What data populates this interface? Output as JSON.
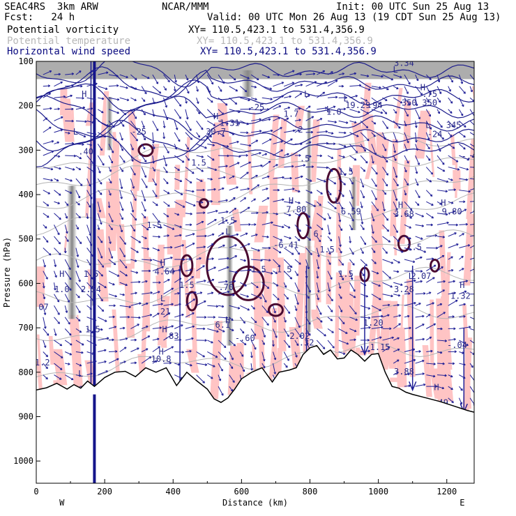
{
  "header": {
    "model": "SEAC4RS  3km ARW",
    "org": "NCAR/MMM",
    "init": "Init: 00 UTC Sun 25 Aug 13",
    "fcst": "Fcst:   24 h",
    "valid": "Valid: 00 UTC Mon 26 Aug 13 (19 CDT Sun 25 Aug 13)"
  },
  "fields": [
    {
      "name": "Potential vorticity",
      "xy": "XY= 110.5,423.1 to 531.4,356.9",
      "color": "#000000"
    },
    {
      "name": "Potential temperature",
      "xy": "XY= 110.5,423.1 to 531.4,356.9",
      "color": "#b8b8b8"
    },
    {
      "name": "Horizontal wind speed",
      "xy": "XY= 110.5,423.1 to 531.4,356.9",
      "color": "#0a0a80"
    }
  ],
  "chart_data": {
    "type": "cross-section",
    "xlabel": "Distance (km)",
    "ylabel": "Pressure (hPa)",
    "xlim": [
      0,
      1280
    ],
    "ylim": [
      1050,
      100
    ],
    "x_ticks": [
      0,
      200,
      400,
      600,
      800,
      1000,
      1200
    ],
    "y_ticks": [
      100,
      200,
      300,
      400,
      500,
      600,
      700,
      800,
      900,
      1000
    ],
    "x_end_labels": {
      "left": "W",
      "right": "E"
    },
    "terrain_surface": [
      [
        0,
        840
      ],
      [
        30,
        835
      ],
      [
        60,
        825
      ],
      [
        90,
        838
      ],
      [
        110,
        828
      ],
      [
        130,
        836
      ],
      [
        150,
        820
      ],
      [
        170,
        832
      ],
      [
        200,
        812
      ],
      [
        230,
        800
      ],
      [
        260,
        798
      ],
      [
        290,
        810
      ],
      [
        320,
        790
      ],
      [
        350,
        800
      ],
      [
        380,
        790
      ],
      [
        410,
        830
      ],
      [
        440,
        800
      ],
      [
        470,
        820
      ],
      [
        500,
        838
      ],
      [
        520,
        860
      ],
      [
        540,
        868
      ],
      [
        560,
        858
      ],
      [
        580,
        838
      ],
      [
        600,
        815
      ],
      [
        630,
        800
      ],
      [
        660,
        790
      ],
      [
        690,
        822
      ],
      [
        710,
        800
      ],
      [
        740,
        795
      ],
      [
        760,
        790
      ],
      [
        780,
        760
      ],
      [
        800,
        745
      ],
      [
        820,
        740
      ],
      [
        840,
        760
      ],
      [
        860,
        750
      ],
      [
        880,
        770
      ],
      [
        900,
        768
      ],
      [
        920,
        750
      ],
      [
        940,
        760
      ],
      [
        960,
        775
      ],
      [
        980,
        760
      ],
      [
        1000,
        758
      ],
      [
        1020,
        800
      ],
      [
        1040,
        832
      ],
      [
        1060,
        836
      ],
      [
        1080,
        845
      ],
      [
        1100,
        850
      ],
      [
        1140,
        858
      ],
      [
        1180,
        866
      ],
      [
        1220,
        876
      ],
      [
        1260,
        886
      ],
      [
        1280,
        890
      ]
    ],
    "annotations": [
      {
        "text": "H",
        "x": 140,
        "y": 180
      },
      {
        "text": "L",
        "x": 115,
        "y": 265
      },
      {
        "text": ".40",
        "x": 145,
        "y": 310
      },
      {
        "text": "H",
        "x": 75,
        "y": 585
      },
      {
        "text": "1.0",
        "x": 75,
        "y": 620
      },
      {
        "text": "2.54",
        "x": 160,
        "y": 620
      },
      {
        "text": "1.5",
        "x": 160,
        "y": 585
      },
      {
        "text": "1.5",
        "x": 165,
        "y": 710
      },
      {
        "text": "1.2",
        "x": 18,
        "y": 785
      },
      {
        "text": "L",
        "x": 130,
        "y": 810
      },
      {
        "text": "18.32",
        "x": 160,
        "y": 845
      },
      {
        "text": ".07",
        "x": 14,
        "y": 660
      },
      {
        "text": "-25",
        "x": 300,
        "y": 265
      },
      {
        "text": "1.5",
        "x": 345,
        "y": 475
      },
      {
        "text": "H",
        "x": 370,
        "y": 560
      },
      {
        "text": "4.64",
        "x": 375,
        "y": 580
      },
      {
        "text": "1.5",
        "x": 440,
        "y": 610
      },
      {
        "text": "L",
        "x": 370,
        "y": 640
      },
      {
        "text": ".21",
        "x": 370,
        "y": 670
      },
      {
        "text": "H",
        "x": 375,
        "y": 710
      },
      {
        "text": ".83",
        "x": 395,
        "y": 725
      },
      {
        "text": "H",
        "x": 365,
        "y": 760
      },
      {
        "text": "10.8",
        "x": 365,
        "y": 777
      },
      {
        "text": "H",
        "x": 525,
        "y": 230
      },
      {
        "text": "30.7",
        "x": 525,
        "y": 265
      },
      {
        "text": "1.31",
        "x": 565,
        "y": 245
      },
      {
        "text": "1.5",
        "x": 475,
        "y": 335
      },
      {
        "text": "1.5",
        "x": 560,
        "y": 465
      },
      {
        "text": "L",
        "x": 560,
        "y": 490
      },
      {
        "text": ".70",
        "x": 555,
        "y": 615
      },
      {
        "text": "1.5",
        "x": 650,
        "y": 575
      },
      {
        "text": "H",
        "x": 560,
        "y": 690
      },
      {
        "text": "6.1",
        "x": 545,
        "y": 700
      },
      {
        "text": "-.60",
        "x": 610,
        "y": 730
      },
      {
        "text": "311.1",
        "x": 710,
        "y": 830
      },
      {
        "text": "3",
        "x": 735,
        "y": 825
      },
      {
        "text": "-25",
        "x": 645,
        "y": 210
      },
      {
        "text": "1.7",
        "x": 745,
        "y": 225
      },
      {
        "text": "L",
        "x": 790,
        "y": 180
      },
      {
        "text": "-2",
        "x": 765,
        "y": 260
      },
      {
        "text": ".5",
        "x": 785,
        "y": 325
      },
      {
        "text": "H",
        "x": 745,
        "y": 420
      },
      {
        "text": "7.80",
        "x": 760,
        "y": 440
      },
      {
        "text": "6.",
        "x": 825,
        "y": 495
      },
      {
        "text": "-6.41",
        "x": 730,
        "y": 520
      },
      {
        "text": "1.5",
        "x": 725,
        "y": 575
      },
      {
        "text": "1.5",
        "x": 850,
        "y": 530
      },
      {
        "text": "1.5",
        "x": 905,
        "y": 585
      },
      {
        "text": "2.02",
        "x": 770,
        "y": 725
      },
      {
        "text": ".32",
        "x": 790,
        "y": 740
      },
      {
        "text": "L",
        "x": 905,
        "y": 190
      },
      {
        "text": "19.29",
        "x": 940,
        "y": 205
      },
      {
        "text": ".94",
        "x": 990,
        "y": 205
      },
      {
        "text": "L",
        "x": 855,
        "y": 215
      },
      {
        "text": "1.0",
        "x": 870,
        "y": 220
      },
      {
        "text": "1.5",
        "x": 905,
        "y": 355
      },
      {
        "text": "L",
        "x": 880,
        "y": 420
      },
      {
        "text": "6.59",
        "x": 920,
        "y": 445
      },
      {
        "text": "L",
        "x": 1050,
        "y": 125
      },
      {
        "text": "3.34",
        "x": 1075,
        "y": 110
      },
      {
        "text": "H",
        "x": 1130,
        "y": 165
      },
      {
        "text": ".75",
        "x": 1150,
        "y": 180
      },
      {
        "text": "350",
        "x": 1090,
        "y": 200
      },
      {
        "text": "350",
        "x": 1150,
        "y": 200
      },
      {
        "text": "L",
        "x": 1145,
        "y": 250
      },
      {
        "text": "-24",
        "x": 1165,
        "y": 270
      },
      {
        "text": "345",
        "x": 1220,
        "y": 250
      },
      {
        "text": "-.4",
        "x": 1265,
        "y": 320
      },
      {
        "text": "H",
        "x": 1190,
        "y": 425
      },
      {
        "text": "9.80",
        "x": 1215,
        "y": 445
      },
      {
        "text": "H",
        "x": 1065,
        "y": 430
      },
      {
        "text": "3.68",
        "x": 1075,
        "y": 450
      },
      {
        "text": "1.5",
        "x": 1105,
        "y": 525
      },
      {
        "text": "L",
        "x": 1095,
        "y": 590
      },
      {
        "text": "2.07",
        "x": 1125,
        "y": 590
      },
      {
        "text": "3.28",
        "x": 1075,
        "y": 620
      },
      {
        "text": "H",
        "x": 1245,
        "y": 610
      },
      {
        "text": "1.32",
        "x": 1240,
        "y": 635
      },
      {
        "text": "-.04",
        "x": 1230,
        "y": 745
      },
      {
        "text": "1.20",
        "x": 985,
        "y": 695
      },
      {
        "text": "1.15",
        "x": 1005,
        "y": 750
      },
      {
        "text": "3.88",
        "x": 1075,
        "y": 805
      },
      {
        "text": "H",
        "x": 1170,
        "y": 840
      },
      {
        "text": "2.49",
        "x": 1175,
        "y": 875
      },
      {
        "text": "3",
        "x": 1000,
        "y": 850
      }
    ]
  }
}
